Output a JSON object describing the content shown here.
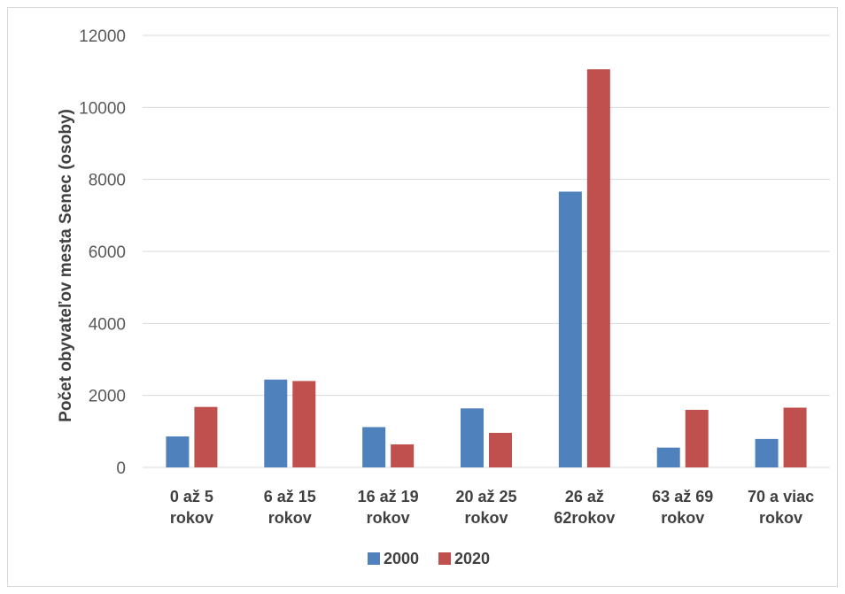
{
  "chart_data": {
    "type": "bar",
    "title": "",
    "xlabel": "",
    "ylabel": "Počet obyvateľov mesta Senec (osoby)",
    "ylim": [
      0,
      12000
    ],
    "yticks": [
      0,
      2000,
      4000,
      6000,
      8000,
      10000,
      12000
    ],
    "grid": true,
    "legend_position": "bottom",
    "categories": [
      [
        "0 až 5",
        "rokov"
      ],
      [
        "6 až 15",
        "rokov"
      ],
      [
        "16 až 19",
        "rokov"
      ],
      [
        "20 až 25",
        "rokov"
      ],
      [
        "26 až",
        "62rokov"
      ],
      [
        "63 až 69",
        "rokov"
      ],
      [
        "70 a viac",
        "rokov"
      ]
    ],
    "series": [
      {
        "name": "2000",
        "color": "#4f81bd",
        "values": [
          860,
          2440,
          1120,
          1640,
          7660,
          550,
          790
        ]
      },
      {
        "name": "2020",
        "color": "#c0504d",
        "values": [
          1680,
          2400,
          640,
          960,
          11060,
          1600,
          1660
        ]
      }
    ]
  }
}
